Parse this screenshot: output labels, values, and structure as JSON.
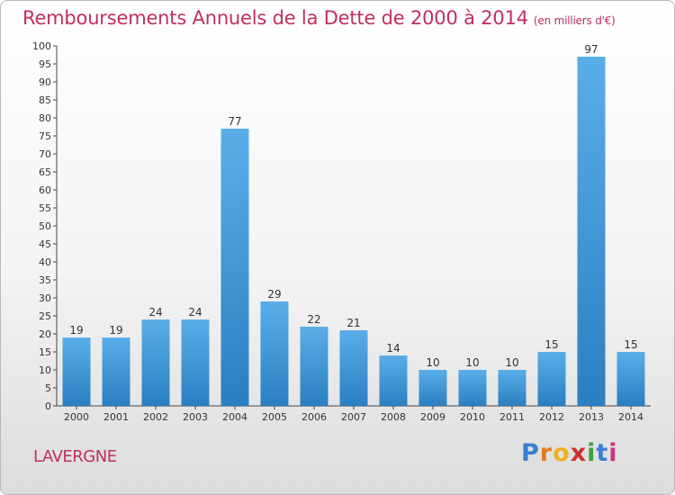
{
  "header": {
    "title": "Remboursements Annuels de la Dette de 2000 à 2014",
    "subtitle": "(en milliers d'€)"
  },
  "footer": {
    "commune": "LAVERGNE",
    "logo_letters": [
      "P",
      "r",
      "o",
      "x",
      "i",
      "t",
      "i"
    ]
  },
  "colors": {
    "bar_top": "#5aaee8",
    "bar_bottom": "#2a7fc2",
    "title": "#c0305a",
    "logo": [
      "#3a7fd0",
      "#e87820",
      "#f0b020",
      "#d03030",
      "#40a040",
      "#3a7fd0",
      "#d03080"
    ]
  },
  "chart_data": {
    "type": "bar",
    "title": "Remboursements Annuels de la Dette de 2000 à 2014",
    "categories": [
      "2000",
      "2001",
      "2002",
      "2003",
      "2004",
      "2005",
      "2006",
      "2007",
      "2008",
      "2009",
      "2010",
      "2011",
      "2012",
      "2013",
      "2014"
    ],
    "values": [
      19,
      19,
      24,
      24,
      77,
      29,
      22,
      21,
      14,
      10,
      10,
      10,
      15,
      97,
      15
    ],
    "ylim": [
      0,
      100
    ],
    "yticks": [
      0,
      5,
      10,
      15,
      20,
      25,
      30,
      35,
      40,
      45,
      50,
      55,
      60,
      65,
      70,
      75,
      80,
      85,
      90,
      95,
      100
    ],
    "grid": false,
    "data_labels": true
  }
}
